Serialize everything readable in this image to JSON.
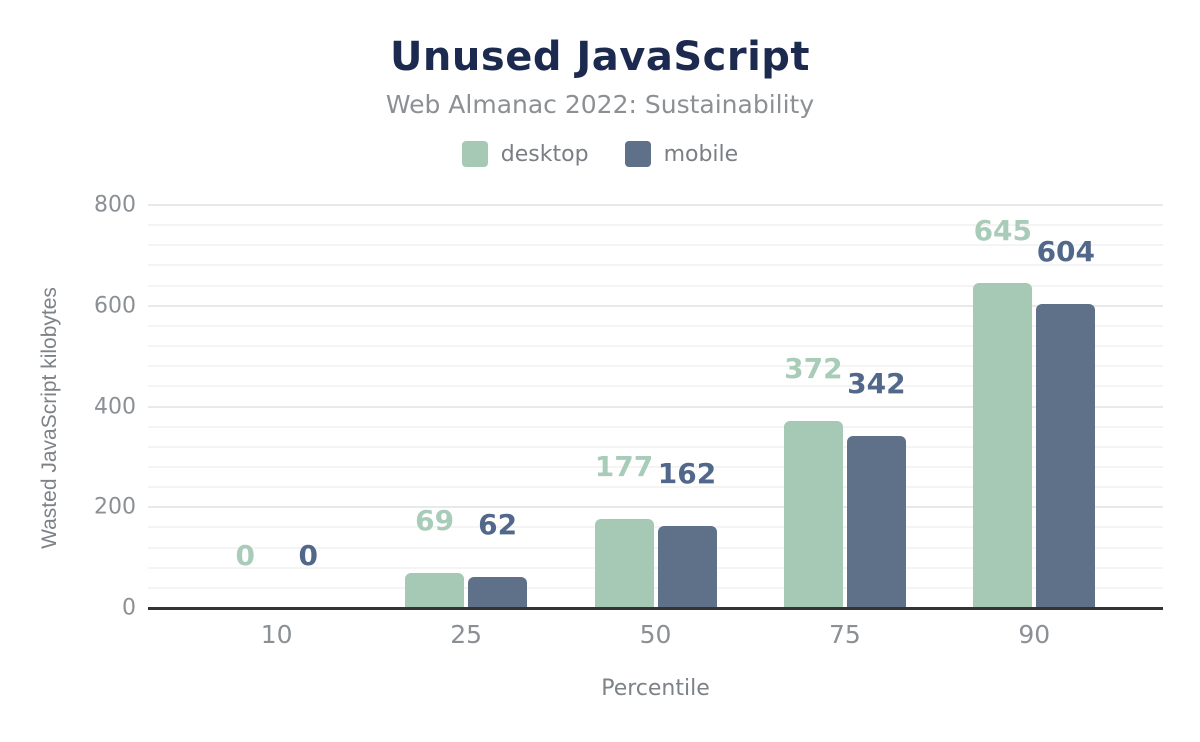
{
  "header": {
    "title": "Unused JavaScript",
    "subtitle": "Web Almanac 2022: Sustainability"
  },
  "chart_data": {
    "type": "bar",
    "title": "Unused JavaScript",
    "subtitle": "Web Almanac 2022: Sustainability",
    "categories": [
      "10",
      "25",
      "50",
      "75",
      "90"
    ],
    "series": [
      {
        "name": "desktop",
        "color": "#a5c9b5",
        "label_color": "#a9ccb9",
        "values": [
          0,
          69,
          177,
          372,
          645
        ]
      },
      {
        "name": "mobile",
        "color": "#5f7189",
        "label_color": "#52688a",
        "values": [
          0,
          62,
          162,
          342,
          604
        ]
      }
    ],
    "xlabel": "Percentile",
    "ylabel": "Wasted JavaScript kilobytes",
    "ylim": [
      0,
      800
    ],
    "yticks": [
      0,
      200,
      400,
      600,
      800
    ],
    "minor_grid_step": 40,
    "grid": true,
    "legend_position": "top",
    "data_labels_shown": true
  },
  "colors": {
    "background": "#ffffff",
    "title": "#1b2a4e",
    "subtitle": "#8c9095",
    "axis_text": "#8b9095",
    "axis_title_text": "#7d8287",
    "axis_line": "#323537",
    "gridline_major": "#e8e9ea",
    "gridline_minor": "#f4f4f5"
  }
}
